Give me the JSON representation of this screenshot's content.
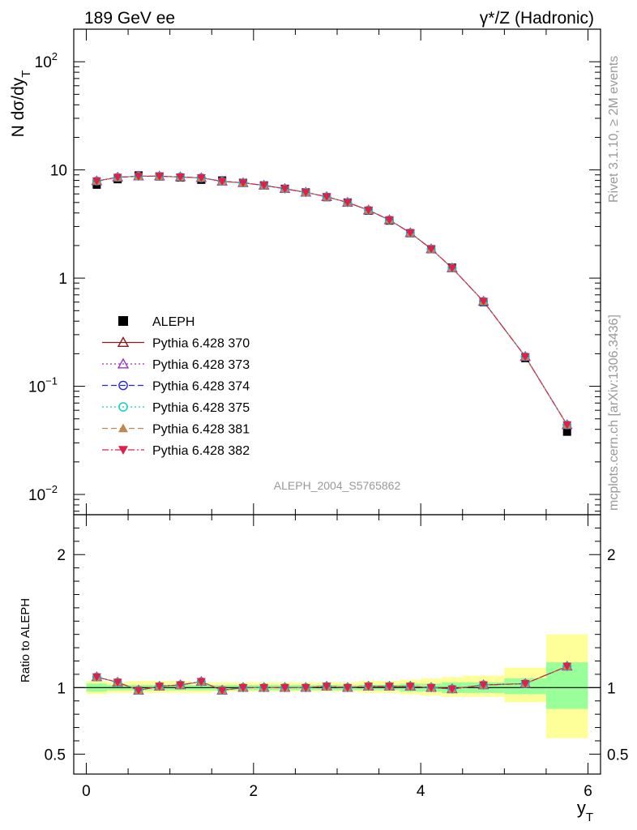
{
  "header": {
    "left_title": "189 GeV ee",
    "right_title": "γ*/Z (Hadronic)"
  },
  "side_labels": {
    "rivet": "Rivet 3.1.10, ≥ 2M events",
    "mcplots": "mcplots.cern.ch [arXiv:1306.3436]"
  },
  "analysis_label": "ALEPH_2004_S5765862",
  "chart_data": [
    {
      "type": "scatter",
      "ylabel": "N dσ/dy",
      "ylabel_subscript": "T",
      "xlim": [
        -0.15,
        6.15
      ],
      "ylim": [
        0.0065,
        200
      ],
      "log_y": true,
      "yticks": [
        {
          "value": 100,
          "base": "10",
          "exp": "2"
        },
        {
          "value": 10,
          "base": "10",
          "exp": ""
        },
        {
          "value": 1,
          "base": "1",
          "exp": ""
        },
        {
          "value": 0.1,
          "base": "10",
          "exp": "−1"
        },
        {
          "value": 0.01,
          "base": "10",
          "exp": "−2"
        }
      ],
      "x": [
        0.125,
        0.375,
        0.625,
        0.875,
        1.125,
        1.375,
        1.625,
        1.875,
        2.125,
        2.375,
        2.625,
        2.875,
        3.125,
        3.375,
        3.625,
        3.875,
        4.125,
        4.375,
        4.75,
        5.25,
        5.75
      ],
      "data_y": [
        7.3,
        8.2,
        8.9,
        8.7,
        8.5,
        8.1,
        8.0,
        7.6,
        7.2,
        6.7,
        6.2,
        5.6,
        5.0,
        4.2,
        3.4,
        2.6,
        1.85,
        1.25,
        0.6,
        0.182,
        0.038
      ],
      "series": [
        {
          "name": "ALEPH",
          "color": "#000000",
          "marker": "square",
          "line": "none"
        },
        {
          "name": "Pythia 6.428 370",
          "color": "#8b1a1a",
          "marker": "triangle-open",
          "line": "solid"
        },
        {
          "name": "Pythia 6.428 373",
          "color": "#9932cc",
          "marker": "triangle-open",
          "line": "dotted"
        },
        {
          "name": "Pythia 6.428 374",
          "color": "#2323d8",
          "marker": "circle-open",
          "line": "dashed"
        },
        {
          "name": "Pythia 6.428 375",
          "color": "#00d0c0",
          "marker": "circle-open",
          "line": "dotted"
        },
        {
          "name": "Pythia 6.428 381",
          "color": "#c08850",
          "marker": "triangle-filled",
          "line": "dashed"
        },
        {
          "name": "Pythia 6.428 382",
          "color": "#e0204a",
          "marker": "triangle-down-filled",
          "line": "dashdot"
        }
      ],
      "mc_y": [
        7.9,
        8.55,
        8.75,
        8.75,
        8.6,
        8.45,
        7.85,
        7.6,
        7.2,
        6.7,
        6.2,
        5.65,
        5.0,
        4.25,
        3.45,
        2.62,
        1.86,
        1.24,
        0.61,
        0.188,
        0.044
      ]
    },
    {
      "type": "scatter",
      "ylabel": "Ratio to ALEPH",
      "xlabel": "y",
      "xlabel_subscript": "T",
      "xlim": [
        -0.15,
        6.15
      ],
      "ylim": [
        0.35,
        2.3
      ],
      "xticks": [
        0,
        2,
        4,
        6
      ],
      "yticks": [
        0.5,
        1,
        2
      ],
      "ratio": [
        1.08,
        1.04,
        0.98,
        1.01,
        1.02,
        1.045,
        0.98,
        1.0,
        1.0,
        1.0,
        1.0,
        1.01,
        1.0,
        1.01,
        1.01,
        1.01,
        1.0,
        0.99,
        1.02,
        1.03,
        1.16
      ],
      "band_edges": [
        0,
        0.25,
        0.5,
        0.75,
        1.0,
        1.25,
        1.5,
        1.75,
        2.0,
        2.25,
        2.5,
        2.75,
        3.0,
        3.25,
        3.5,
        3.75,
        4.0,
        4.25,
        4.5,
        5.0,
        5.5,
        6.0
      ],
      "stat_band": [
        [
          0.97,
          1.03
        ],
        [
          0.98,
          1.02
        ],
        [
          0.98,
          1.02
        ],
        [
          0.98,
          1.02
        ],
        [
          0.98,
          1.02
        ],
        [
          0.98,
          1.02
        ],
        [
          0.98,
          1.02
        ],
        [
          0.98,
          1.02
        ],
        [
          0.98,
          1.02
        ],
        [
          0.98,
          1.02
        ],
        [
          0.98,
          1.02
        ],
        [
          0.98,
          1.02
        ],
        [
          0.98,
          1.02
        ],
        [
          0.98,
          1.02
        ],
        [
          0.98,
          1.02
        ],
        [
          0.97,
          1.03
        ],
        [
          0.97,
          1.03
        ],
        [
          0.96,
          1.04
        ],
        [
          0.96,
          1.04
        ],
        [
          0.95,
          1.07
        ],
        [
          0.84,
          1.19
        ],
        [
          0.84,
          1.19
        ]
      ],
      "total_band": [
        [
          0.95,
          1.05
        ],
        [
          0.96,
          1.04
        ],
        [
          0.96,
          1.05
        ],
        [
          0.96,
          1.05
        ],
        [
          0.96,
          1.05
        ],
        [
          0.96,
          1.04
        ],
        [
          0.97,
          1.04
        ],
        [
          0.97,
          1.04
        ],
        [
          0.97,
          1.04
        ],
        [
          0.97,
          1.04
        ],
        [
          0.97,
          1.04
        ],
        [
          0.97,
          1.04
        ],
        [
          0.97,
          1.04
        ],
        [
          0.96,
          1.05
        ],
        [
          0.96,
          1.05
        ],
        [
          0.95,
          1.06
        ],
        [
          0.94,
          1.07
        ],
        [
          0.93,
          1.08
        ],
        [
          0.93,
          1.09
        ],
        [
          0.89,
          1.15
        ],
        [
          0.62,
          1.4
        ],
        [
          0.62,
          1.4
        ]
      ]
    }
  ]
}
